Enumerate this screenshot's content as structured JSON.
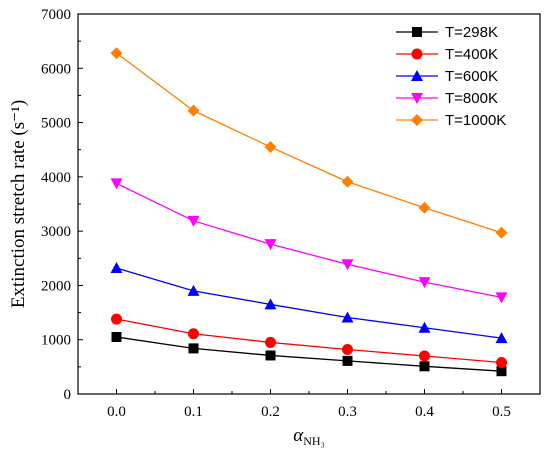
{
  "chart_data": {
    "type": "line",
    "title": "",
    "xlabel_main": "α",
    "xlabel_sub": "NH₃",
    "ylabel": "Extinction stretch rate (s⁻¹)",
    "xlim": [
      -0.05,
      0.55
    ],
    "ylim": [
      0,
      7000
    ],
    "x_ticks": [
      0.0,
      0.1,
      0.2,
      0.3,
      0.4,
      0.5
    ],
    "x_tick_labels": [
      "0.0",
      "0.1",
      "0.2",
      "0.3",
      "0.4",
      "0.5"
    ],
    "y_ticks": [
      0,
      1000,
      2000,
      3000,
      4000,
      5000,
      6000,
      7000
    ],
    "y_tick_labels": [
      "0",
      "1000",
      "2000",
      "3000",
      "4000",
      "5000",
      "6000",
      "7000"
    ],
    "grid": false,
    "legend_position": "top-right",
    "x": [
      0.0,
      0.1,
      0.2,
      0.3,
      0.4,
      0.5
    ],
    "series": [
      {
        "name": "T=298K",
        "color": "#000000",
        "marker": "square",
        "values": [
          1050,
          840,
          710,
          610,
          510,
          420
        ]
      },
      {
        "name": "T=400K",
        "color": "#ff0000",
        "marker": "circle",
        "values": [
          1380,
          1110,
          950,
          820,
          700,
          580
        ]
      },
      {
        "name": "T=600K",
        "color": "#0000ff",
        "marker": "triangle-up",
        "values": [
          2320,
          1900,
          1650,
          1410,
          1220,
          1030
        ]
      },
      {
        "name": "T=800K",
        "color": "#ff00ff",
        "marker": "triangle-down",
        "values": [
          3880,
          3190,
          2760,
          2390,
          2060,
          1780
        ]
      },
      {
        "name": "T=1000K",
        "color": "#ff8000",
        "marker": "diamond",
        "values": [
          6280,
          5220,
          4550,
          3910,
          3430,
          2970
        ]
      }
    ]
  }
}
